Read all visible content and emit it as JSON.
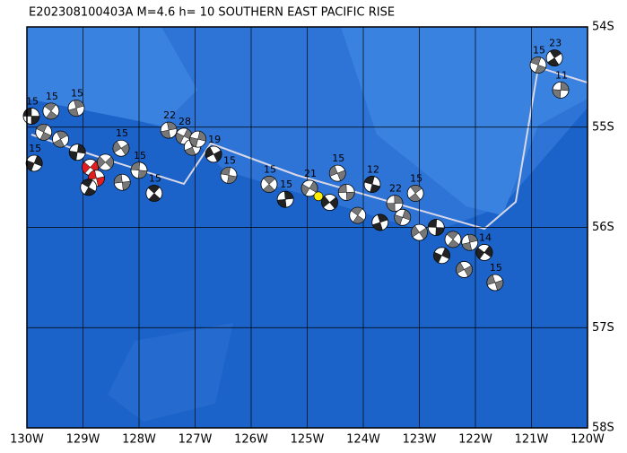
{
  "map": {
    "title": "E202308100403A M=4.6 h= 10 SOUTHERN EAST PACIFIC RISE",
    "xlim": [
      -130,
      -120
    ],
    "ylim": [
      -58,
      -54
    ],
    "xticks": [
      {
        "value": -130,
        "label": "130W"
      },
      {
        "value": -129,
        "label": "129W"
      },
      {
        "value": -128,
        "label": "128W"
      },
      {
        "value": -127,
        "label": "127W"
      },
      {
        "value": -126,
        "label": "126W"
      },
      {
        "value": -125,
        "label": "125W"
      },
      {
        "value": -124,
        "label": "124W"
      },
      {
        "value": -123,
        "label": "123W"
      },
      {
        "value": -122,
        "label": "122W"
      },
      {
        "value": -121,
        "label": "121W"
      },
      {
        "value": -120,
        "label": "120W"
      }
    ],
    "yticks": [
      {
        "value": -54,
        "label": "54S"
      },
      {
        "value": -55,
        "label": "55S"
      },
      {
        "value": -56,
        "label": "56S"
      },
      {
        "value": -57,
        "label": "57S"
      },
      {
        "value": -58,
        "label": "58S"
      }
    ],
    "main_event": {
      "lon": -124.8,
      "lat": -55.69,
      "color": "#ffee00"
    },
    "events": [
      {
        "lon": -129.92,
        "lat": -54.89,
        "depth": 15
      },
      {
        "lon": -129.57,
        "lat": -54.84,
        "depth": 15
      },
      {
        "lon": -129.12,
        "lat": -54.81,
        "depth": 15
      },
      {
        "lon": -129.87,
        "lat": -55.36,
        "depth": 15
      },
      {
        "lon": -128.32,
        "lat": -55.21,
        "depth": 15
      },
      {
        "lon": -128.0,
        "lat": -55.43,
        "depth": 15
      },
      {
        "lon": -127.73,
        "lat": -55.66,
        "depth": 15
      },
      {
        "lon": -127.47,
        "lat": -55.03,
        "depth": 22
      },
      {
        "lon": -127.2,
        "lat": -55.09,
        "depth": 28
      },
      {
        "lon": -126.67,
        "lat": -55.27,
        "depth": 19
      },
      {
        "lon": -126.4,
        "lat": -55.48,
        "depth": 15
      },
      {
        "lon": -125.68,
        "lat": -55.57,
        "depth": 15
      },
      {
        "lon": -125.39,
        "lat": -55.72,
        "depth": 15
      },
      {
        "lon": -124.96,
        "lat": -55.61,
        "depth": 21
      },
      {
        "lon": -124.46,
        "lat": -55.46,
        "depth": 15
      },
      {
        "lon": -123.84,
        "lat": -55.57,
        "depth": 12
      },
      {
        "lon": -123.07,
        "lat": -55.66,
        "depth": 15
      },
      {
        "lon": -123.44,
        "lat": -55.76,
        "depth": 22
      },
      {
        "lon": -121.84,
        "lat": -56.25,
        "depth": 14
      },
      {
        "lon": -121.65,
        "lat": -56.55,
        "depth": 15
      },
      {
        "lon": -120.88,
        "lat": -54.38,
        "depth": 15
      },
      {
        "lon": -120.59,
        "lat": -54.31,
        "depth": 23
      },
      {
        "lon": -120.48,
        "lat": -54.63,
        "depth": 11
      },
      {
        "lon": -128.87,
        "lat": -55.4,
        "color": "#e02020"
      },
      {
        "lon": -128.76,
        "lat": -55.51,
        "color": "#e02020"
      },
      {
        "lon": -129.7,
        "lat": -55.05
      },
      {
        "lon": -129.4,
        "lat": -55.12
      },
      {
        "lon": -129.1,
        "lat": -55.25
      },
      {
        "lon": -128.6,
        "lat": -55.35
      },
      {
        "lon": -128.3,
        "lat": -55.55
      },
      {
        "lon": -128.9,
        "lat": -55.6
      },
      {
        "lon": -127.05,
        "lat": -55.2
      },
      {
        "lon": -126.95,
        "lat": -55.12
      },
      {
        "lon": -124.6,
        "lat": -55.75
      },
      {
        "lon": -124.3,
        "lat": -55.65
      },
      {
        "lon": -124.1,
        "lat": -55.88
      },
      {
        "lon": -123.7,
        "lat": -55.95
      },
      {
        "lon": -123.3,
        "lat": -55.9
      },
      {
        "lon": -123.0,
        "lat": -56.05
      },
      {
        "lon": -122.7,
        "lat": -56.0
      },
      {
        "lon": -122.4,
        "lat": -56.12
      },
      {
        "lon": -122.1,
        "lat": -56.15
      },
      {
        "lon": -122.6,
        "lat": -56.28
      },
      {
        "lon": -122.2,
        "lat": -56.42
      }
    ]
  }
}
